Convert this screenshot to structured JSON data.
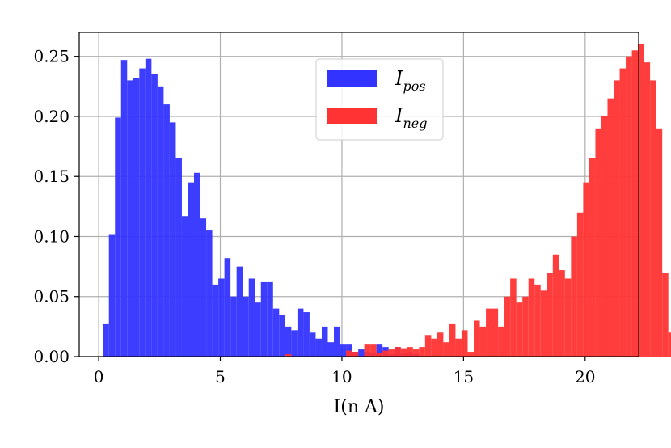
{
  "chart_data": {
    "type": "bar",
    "xlabel": "I(n A)",
    "ylabel": "",
    "xlim": [
      -0.8,
      22.2
    ],
    "ylim": [
      0.0,
      0.27
    ],
    "xticks": [
      0,
      5,
      10,
      15,
      20
    ],
    "xtick_labels": [
      "0",
      "5",
      "10",
      "15",
      "20"
    ],
    "yticks": [
      0.0,
      0.05,
      0.1,
      0.15,
      0.2,
      0.25
    ],
    "ytick_labels": [
      "0.00",
      "0.05",
      "0.10",
      "0.15",
      "0.20",
      "0.25"
    ],
    "grid": true,
    "legend_position": "upper-center",
    "series": [
      {
        "name": "I_pos",
        "legend_main": "I",
        "legend_sub": "pos",
        "color": "#3333ff",
        "bin_start": 0.17,
        "bin_width": 0.25,
        "values": [
          0.027,
          0.102,
          0.199,
          0.247,
          0.23,
          0.232,
          0.24,
          0.248,
          0.235,
          0.225,
          0.21,
          0.195,
          0.165,
          0.117,
          0.145,
          0.153,
          0.115,
          0.105,
          0.06,
          0.065,
          0.082,
          0.05,
          0.075,
          0.05,
          0.065,
          0.045,
          0.062,
          0.062,
          0.04,
          0.035,
          0.025,
          0.022,
          0.04,
          0.037,
          0.02,
          0.015,
          0.025,
          0.012,
          0.025,
          0.01,
          0.01,
          0.004,
          0.006,
          0.004,
          0.003,
          0.01,
          0.008,
          0.002,
          0.008,
          0.003,
          0.004,
          0.002,
          0.0,
          0.0,
          0.0,
          0.0,
          0.0,
          0.0,
          0.0,
          0.0,
          0.0,
          0.0,
          0.0,
          0.0,
          0.0,
          0.0,
          0.0,
          0.0,
          0.0,
          0.0,
          0.0,
          0.0,
          0.0,
          0.0,
          0.0,
          0.0,
          0.0,
          0.0,
          0.0,
          0.0,
          0.0,
          0.0,
          0.0,
          0.0
        ]
      },
      {
        "name": "I_neg",
        "legend_main": "I",
        "legend_sub": "neg",
        "color": "#ff3333",
        "bin_start": 0.17,
        "bin_width": 0.25,
        "values": [
          0.0,
          0.0,
          0.0,
          0.0,
          0.0,
          0.0,
          0.0,
          0.0,
          0.0,
          0.0,
          0.0,
          0.0,
          0.0,
          0.0,
          0.0,
          0.0,
          0.0,
          0.0,
          0.0,
          0.0,
          0.0,
          0.0,
          0.0,
          0.0,
          0.0,
          0.0,
          0.0,
          0.0,
          0.0,
          0.0,
          0.002,
          0.0,
          0.0,
          0.0,
          0.0,
          0.0,
          0.0,
          0.0,
          0.0,
          0.0,
          0.005,
          0.004,
          0.0,
          0.01,
          0.01,
          0.003,
          0.005,
          0.006,
          0.008,
          0.007,
          0.008,
          0.006,
          0.008,
          0.018,
          0.015,
          0.02,
          0.012,
          0.027,
          0.015,
          0.022,
          0.004,
          0.03,
          0.025,
          0.04,
          0.04,
          0.025,
          0.05,
          0.065,
          0.045,
          0.05,
          0.065,
          0.06,
          0.055,
          0.07,
          0.085,
          0.072,
          0.065,
          0.1,
          0.12,
          0.145,
          0.165,
          0.19,
          0.2,
          0.215,
          0.23,
          0.24,
          0.25,
          0.255,
          0.26,
          0.245,
          0.23,
          0.19,
          0.07,
          0.02
        ]
      }
    ]
  }
}
